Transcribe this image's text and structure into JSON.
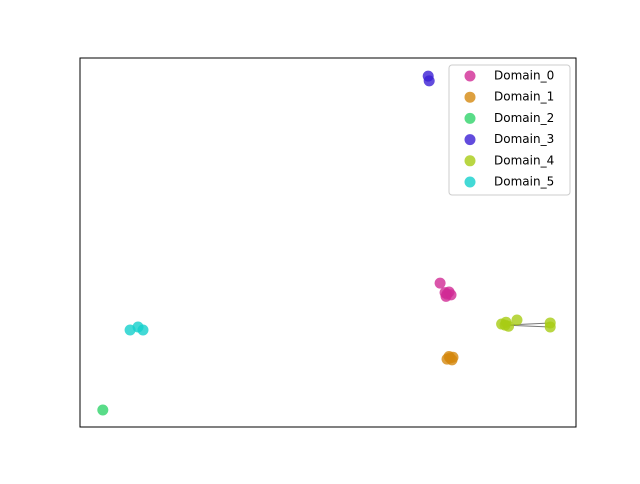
{
  "chart_data": {
    "type": "scatter",
    "xlim": [
      0,
      100
    ],
    "ylim": [
      0,
      100
    ],
    "legend": "upper right",
    "series": [
      {
        "name": "Domain_0",
        "color": "#d12a95",
        "x": [
          72.6,
          74.0,
          74.4,
          73.8,
          74.8,
          73.6
        ],
        "y": [
          39.0,
          36.0,
          36.6,
          35.4,
          35.8,
          36.4
        ]
      },
      {
        "name": "Domain_1",
        "color": "#d4880f",
        "x": [
          74.6,
          74.0,
          75.2,
          74.4,
          75.0
        ],
        "y": [
          18.7,
          18.4,
          18.9,
          19.1,
          18.2
        ]
      },
      {
        "name": "Domain_2",
        "color": "#2fd36a",
        "x": [
          4.6
        ],
        "y": [
          4.6
        ]
      },
      {
        "name": "Domain_3",
        "color": "#3b1fd4",
        "x": [
          70.2,
          70.4
        ],
        "y": [
          95.1,
          93.8
        ]
      },
      {
        "name": "Domain_4",
        "color": "#a8cc14",
        "x": [
          85.7,
          85.0,
          86.4,
          85.9,
          88.1,
          94.8,
          94.8
        ],
        "y": [
          27.6,
          27.9,
          27.3,
          28.4,
          29.0,
          28.2,
          27.1
        ]
      },
      {
        "name": "Domain_5",
        "color": "#14d0cc",
        "x": [
          10.1,
          11.7,
          12.7
        ],
        "y": [
          26.3,
          27.1,
          26.3
        ]
      }
    ]
  }
}
